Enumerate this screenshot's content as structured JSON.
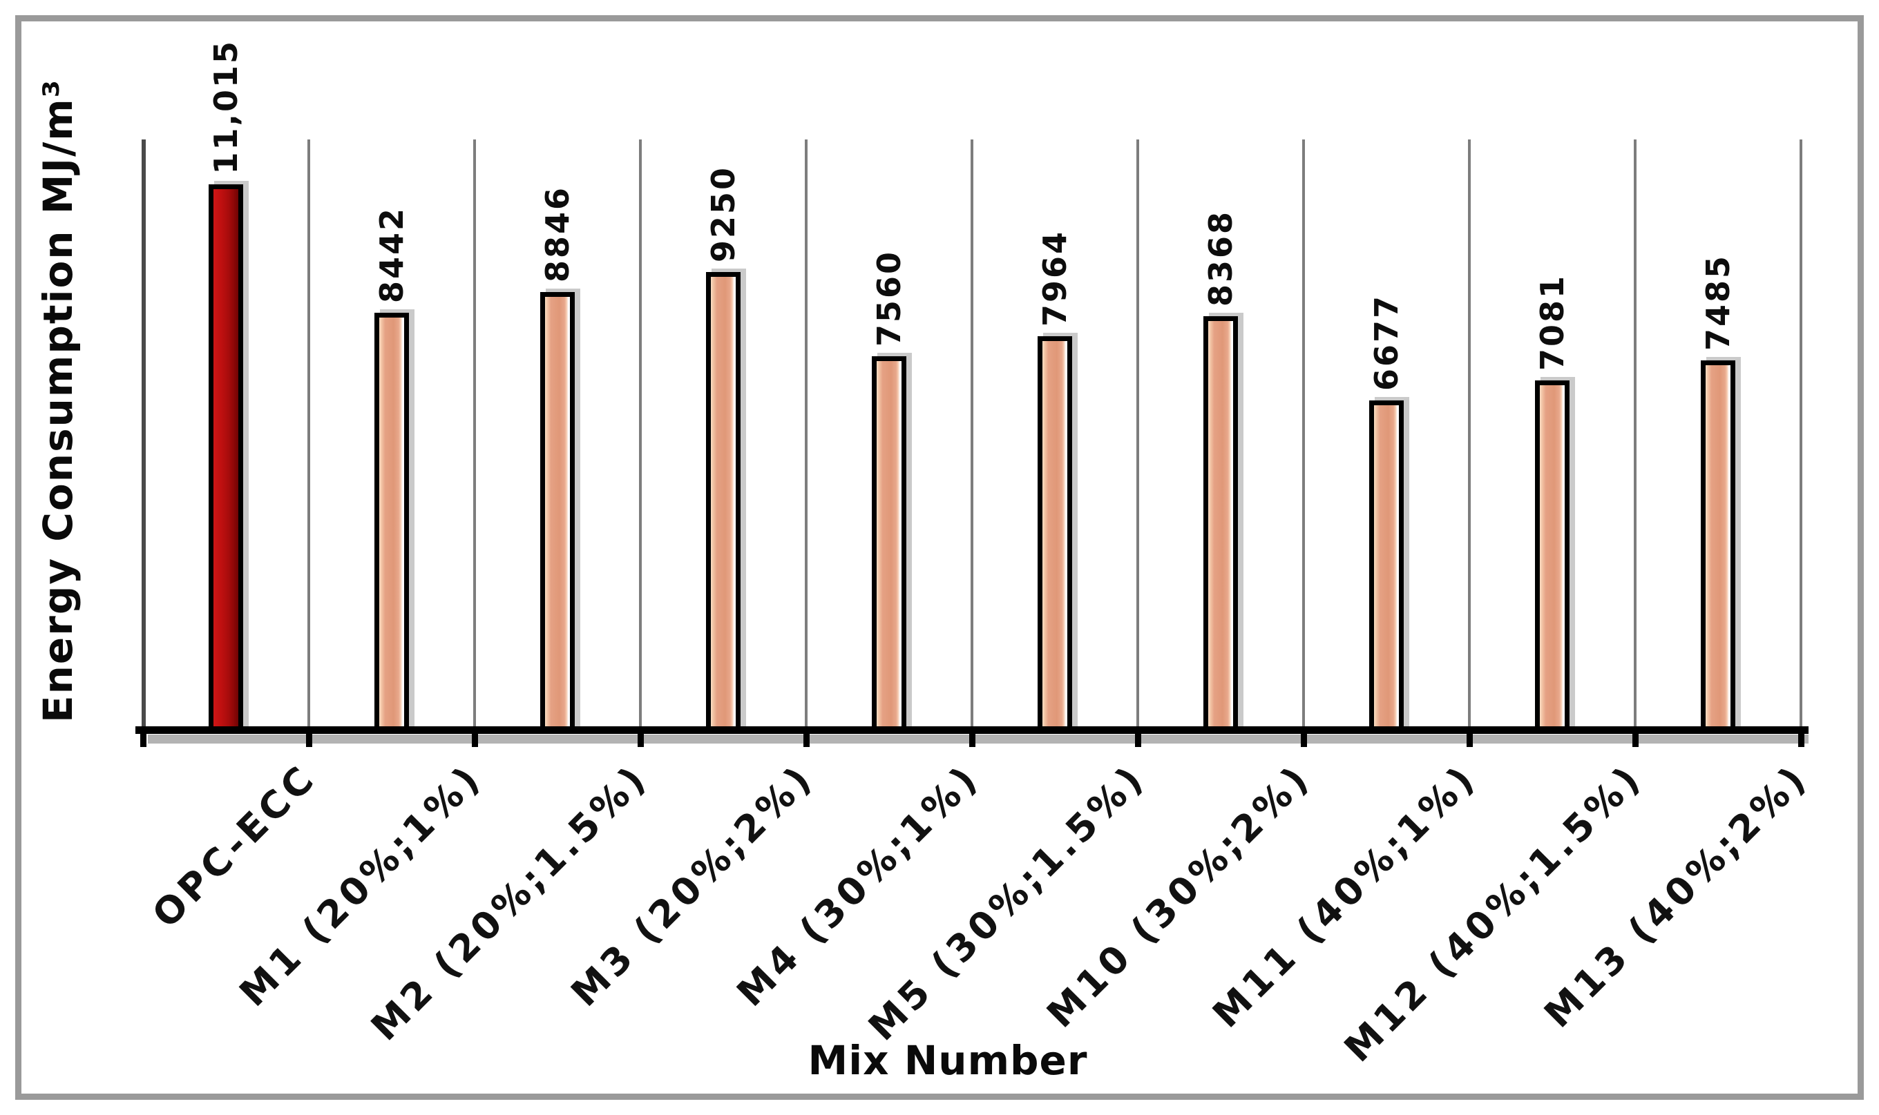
{
  "figure": {
    "frame_color": "#9a9a9a",
    "background": "#ffffff",
    "gridline_color": "#7d7d7d",
    "axis_color": "#000000"
  },
  "chart_data": {
    "type": "bar",
    "title": "",
    "xlabel": "Mix Number",
    "ylabel": "Energy Consumption MJ/m³",
    "categories": [
      "OPC-ECC",
      "M1 (20%;1%)",
      "M2 (20%;1.5%)",
      "M3 (20%;2%)",
      "M4 (30%;1%)",
      "M5 (30%;1.5%)",
      "M10 (30%;2%)",
      "M11 (40%;1%)",
      "M12 (40%;1.5%)",
      "M13 (40%;2%)"
    ],
    "values": [
      11015,
      8442,
      8846,
      9250,
      7560,
      7964,
      8368,
      6677,
      7081,
      7485
    ],
    "value_labels": [
      "11,015",
      "8442",
      "8846",
      "9250",
      "7560",
      "7964",
      "8368",
      "6677",
      "7081",
      "7485"
    ],
    "ylim": [
      0,
      11845
    ],
    "grid": "vertical-category-separators",
    "legend": "none",
    "highlight_index": 0,
    "bar_fill_highlight": "#b40f0f",
    "bar_fill_default": "#e29b7f",
    "bar_outline": "#000000"
  }
}
